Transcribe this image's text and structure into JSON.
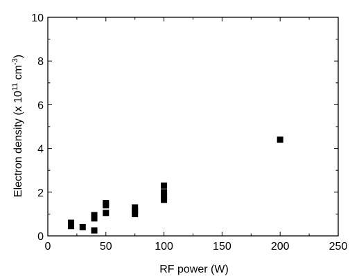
{
  "chart_data": {
    "type": "scatter",
    "xlabel": "RF power (W)",
    "ylabel": {
      "base": "Electron density (x 10",
      "exp1": "11",
      "mid": " cm",
      "exp2": "-3",
      "end": ")"
    },
    "xlim": [
      0,
      250
    ],
    "ylim": [
      0,
      10
    ],
    "xticks": [
      0,
      50,
      100,
      150,
      200,
      250
    ],
    "yticks": [
      0,
      2,
      4,
      6,
      8,
      10
    ],
    "grid": false,
    "marker": "square",
    "marker_color": "#000000",
    "series": [
      {
        "points": [
          {
            "x": 20,
            "y": 0.45
          },
          {
            "x": 20,
            "y": 0.6
          },
          {
            "x": 30,
            "y": 0.4
          },
          {
            "x": 40,
            "y": 0.25
          },
          {
            "x": 40,
            "y": 0.8
          },
          {
            "x": 40,
            "y": 0.95
          },
          {
            "x": 50,
            "y": 1.05
          },
          {
            "x": 50,
            "y": 1.4
          },
          {
            "x": 50,
            "y": 1.5
          },
          {
            "x": 75,
            "y": 1.0
          },
          {
            "x": 75,
            "y": 1.15
          },
          {
            "x": 75,
            "y": 1.3
          },
          {
            "x": 100,
            "y": 1.65
          },
          {
            "x": 100,
            "y": 1.8
          },
          {
            "x": 100,
            "y": 2.0
          },
          {
            "x": 100,
            "y": 2.3
          },
          {
            "x": 200,
            "y": 4.4
          }
        ]
      }
    ]
  }
}
